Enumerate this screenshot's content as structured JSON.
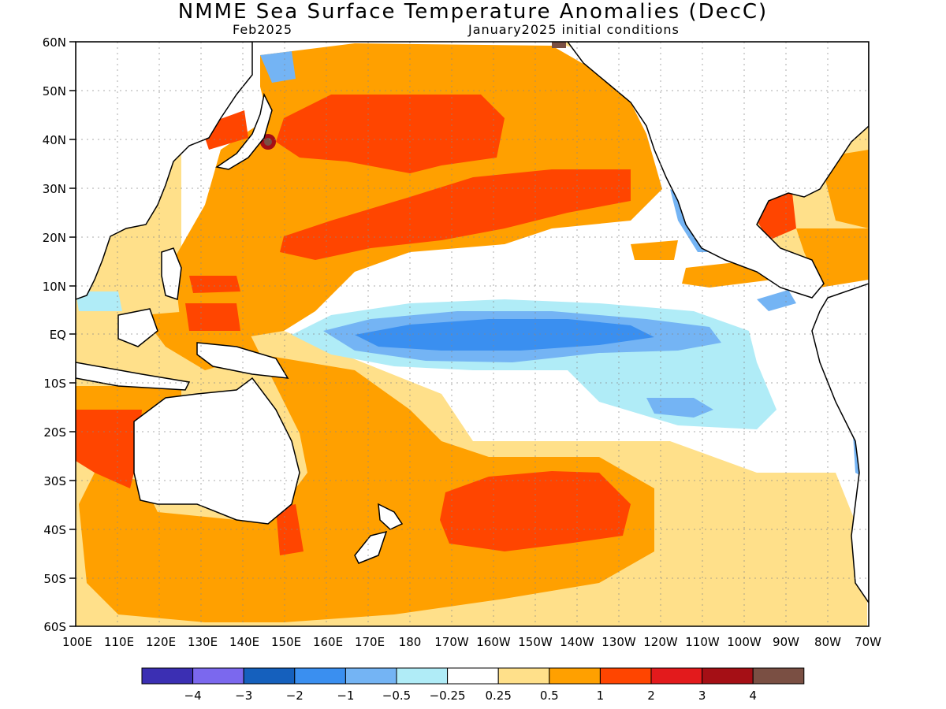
{
  "title": "NMME Sea Surface Temperature Anomalies (DecC)",
  "subtitle_left": "Feb2025",
  "subtitle_right": "January2025 initial conditions",
  "map": {
    "lon_ticks": [
      "100E",
      "110E",
      "120E",
      "130E",
      "140E",
      "150E",
      "160E",
      "170E",
      "180",
      "170W",
      "160W",
      "150W",
      "140W",
      "130W",
      "120W",
      "110W",
      "100W",
      "90W",
      "80W",
      "70W"
    ],
    "lat_ticks": [
      "60N",
      "50N",
      "40N",
      "30N",
      "20N",
      "10N",
      "EQ",
      "10S",
      "20S",
      "30S",
      "40S",
      "50S",
      "60S"
    ]
  },
  "colorbar": {
    "colors": [
      "#3b2fb3",
      "#7b68ee",
      "#1560bd",
      "#3a8ff0",
      "#74b4f4",
      "#b0ecf7",
      "#ffffff",
      "#ffe08a",
      "#ffa000",
      "#ff4500",
      "#e31a1c",
      "#a50f15",
      "#7a4f43"
    ],
    "labels": [
      "−4",
      "−3",
      "−2",
      "−1",
      "−0.5",
      "−0.25",
      "0.25",
      "0.5",
      "1",
      "2",
      "3",
      "4"
    ]
  }
}
